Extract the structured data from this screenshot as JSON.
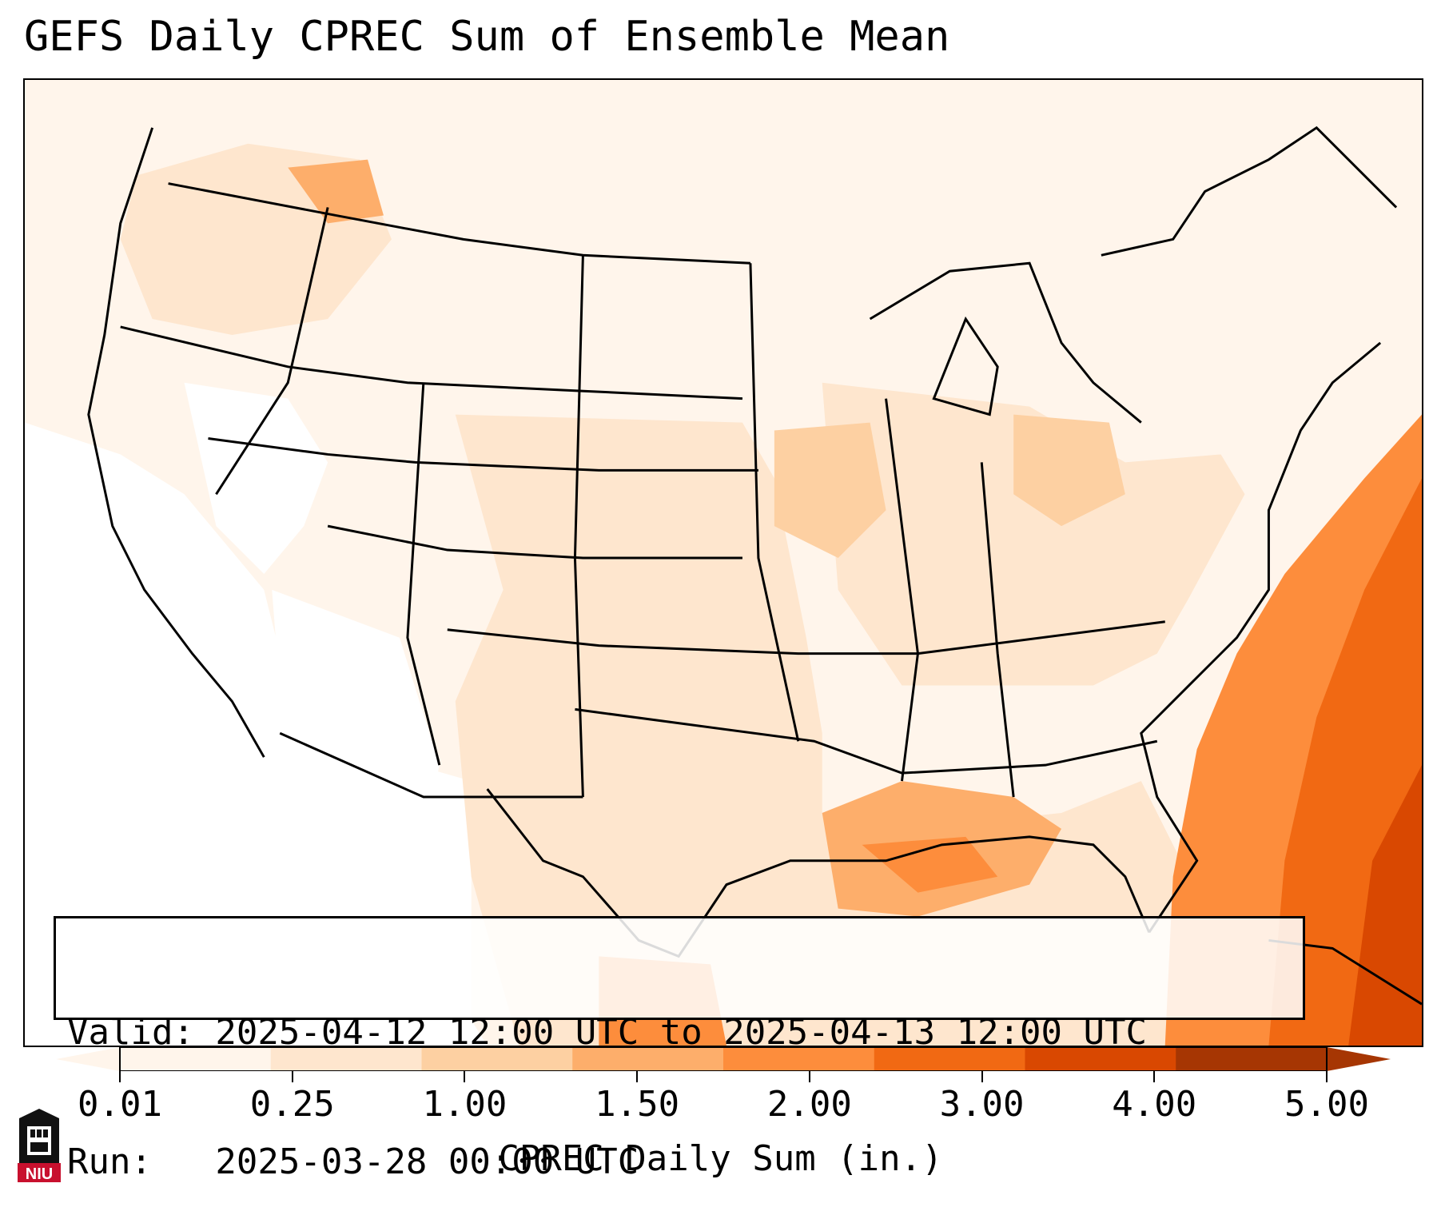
{
  "title": "GEFS Daily CPREC Sum of Ensemble Mean",
  "info": {
    "valid_line": "Valid: 2025-04-12 12:00 UTC to 2025-04-13 12:00 UTC",
    "run_line": "Run:   2025-03-28 00:00 UTC"
  },
  "colorbar": {
    "label": "CPREC Daily Sum (in.)",
    "ticks": [
      "0.01",
      "0.25",
      "1.00",
      "1.50",
      "2.00",
      "3.00",
      "4.00",
      "5.00"
    ],
    "colors": [
      "#fff5eb",
      "#fee6ce",
      "#fdd0a2",
      "#fdae6b",
      "#fd8d3c",
      "#f16913",
      "#d94801",
      "#a63603"
    ]
  },
  "map": {
    "fill_colors": {
      "trace": "#fff5eb",
      "light": "#fee6ce",
      "moderate": "#fdd0a2",
      "medium": "#fdae6b",
      "heavy": "#f16913",
      "very_heavy": "#d94801"
    }
  },
  "logo": {
    "text": "NIU",
    "color": "#c8102e"
  }
}
